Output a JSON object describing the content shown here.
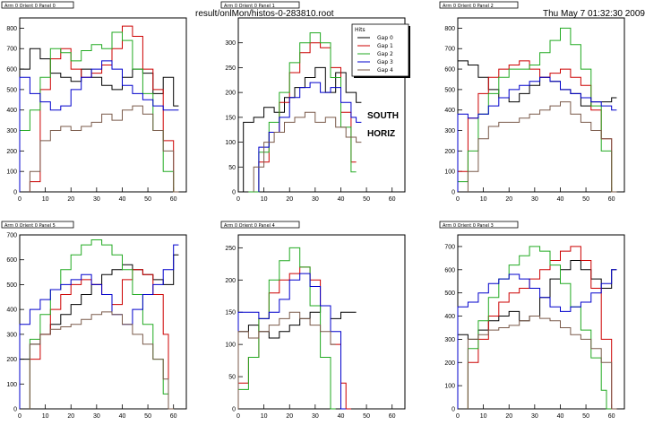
{
  "header": {
    "file_label": "result/onlMon/histos-0-283810.root",
    "datetime": "Thu May  7 01:32:30 2009"
  },
  "annotation": {
    "line1": "SOUTH",
    "line2": "HORIZ"
  },
  "legend": {
    "title": "Hits",
    "entries": [
      "Gap 0",
      "Gap 1",
      "Gap 2",
      "Gap 3",
      "Gap 4"
    ],
    "colors": [
      "#000000",
      "#cc0000",
      "#22aa22",
      "#0000cc",
      "#7a5a4a"
    ]
  },
  "chart_data": [
    {
      "type": "line",
      "title": "Arm 0 Orient 0 Panel 0",
      "xlim": [
        0,
        65
      ],
      "ylim": [
        0,
        850
      ],
      "xticks": [
        0,
        10,
        20,
        30,
        40,
        50,
        60
      ],
      "yticks": [
        0,
        100,
        200,
        300,
        400,
        500,
        600,
        700,
        800
      ],
      "series": [
        {
          "name": "Gap 0",
          "x": [
            0,
            4,
            8,
            12,
            16,
            20,
            24,
            28,
            32,
            36,
            40,
            44,
            48,
            52,
            56,
            60
          ],
          "y": [
            600,
            700,
            650,
            580,
            560,
            540,
            600,
            560,
            520,
            500,
            560,
            600,
            580,
            480,
            560,
            420
          ]
        },
        {
          "name": "Gap 1",
          "x": [
            4,
            8,
            12,
            16,
            20,
            24,
            28,
            32,
            36,
            40,
            44,
            48,
            52,
            56,
            60
          ],
          "y": [
            50,
            500,
            650,
            700,
            600,
            560,
            580,
            620,
            700,
            810,
            760,
            600,
            500,
            250,
            0
          ]
        },
        {
          "name": "Gap 2",
          "x": [
            0,
            4,
            8,
            12,
            16,
            20,
            24,
            28,
            32,
            36,
            40,
            44,
            48,
            52,
            56,
            60
          ],
          "y": [
            300,
            400,
            560,
            700,
            680,
            640,
            690,
            720,
            700,
            780,
            740,
            600,
            480,
            300,
            100,
            0
          ]
        },
        {
          "name": "Gap 3",
          "x": [
            0,
            4,
            8,
            12,
            16,
            20,
            24,
            28,
            32,
            36,
            40,
            44,
            48,
            52,
            56,
            60
          ],
          "y": [
            560,
            480,
            440,
            400,
            420,
            500,
            560,
            600,
            640,
            600,
            520,
            480,
            450,
            420,
            400,
            400
          ]
        },
        {
          "name": "Gap 4",
          "x": [
            4,
            8,
            12,
            16,
            20,
            24,
            28,
            32,
            36,
            40,
            44,
            48,
            52,
            56,
            60
          ],
          "y": [
            100,
            250,
            300,
            320,
            300,
            320,
            340,
            380,
            350,
            400,
            420,
            380,
            300,
            200,
            0
          ]
        }
      ]
    },
    {
      "type": "line",
      "title": "Arm 0 Orient 0 Panel 1",
      "xlim": [
        0,
        65
      ],
      "ylim": [
        0,
        350
      ],
      "xticks": [
        0,
        10,
        20,
        30,
        40,
        50,
        60
      ],
      "yticks": [
        0,
        50,
        100,
        150,
        200,
        250,
        300
      ],
      "series": [
        {
          "name": "Gap 0",
          "x": [
            2,
            6,
            10,
            14,
            18,
            22,
            26,
            30,
            34,
            38,
            42,
            46
          ],
          "y": [
            140,
            150,
            170,
            160,
            190,
            210,
            230,
            250,
            200,
            240,
            200,
            180
          ]
        },
        {
          "name": "Gap 1",
          "x": [
            4,
            8,
            12,
            16,
            20,
            24,
            28,
            32,
            36,
            40,
            44
          ],
          "y": [
            0,
            60,
            120,
            180,
            240,
            280,
            300,
            290,
            250,
            160,
            60
          ]
        },
        {
          "name": "Gap 2",
          "x": [
            4,
            8,
            12,
            16,
            20,
            24,
            28,
            32,
            36,
            40,
            44
          ],
          "y": [
            0,
            80,
            140,
            200,
            260,
            300,
            320,
            300,
            230,
            130,
            40
          ]
        },
        {
          "name": "Gap 3",
          "x": [
            8,
            12,
            16,
            20,
            24,
            28,
            32,
            36,
            40,
            44,
            46
          ],
          "y": [
            90,
            120,
            150,
            190,
            210,
            220,
            200,
            210,
            180,
            150,
            140
          ]
        },
        {
          "name": "Gap 4",
          "x": [
            6,
            10,
            14,
            18,
            22,
            26,
            30,
            34,
            38,
            42,
            46
          ],
          "y": [
            50,
            100,
            120,
            140,
            150,
            160,
            140,
            150,
            130,
            110,
            100
          ]
        }
      ]
    },
    {
      "type": "line",
      "title": "Arm 0 Orient 0 Panel 2",
      "xlim": [
        0,
        65
      ],
      "ylim": [
        0,
        850
      ],
      "xticks": [
        0,
        10,
        20,
        30,
        40,
        50,
        60
      ],
      "yticks": [
        0,
        100,
        200,
        300,
        400,
        500,
        600,
        700,
        800
      ],
      "series": [
        {
          "name": "Gap 0",
          "x": [
            0,
            4,
            8,
            12,
            16,
            20,
            24,
            28,
            32,
            36,
            40,
            44,
            48,
            52,
            56,
            60
          ],
          "y": [
            640,
            620,
            560,
            500,
            460,
            440,
            480,
            520,
            560,
            540,
            500,
            480,
            420,
            440,
            440,
            460
          ]
        },
        {
          "name": "Gap 1",
          "x": [
            0,
            4,
            8,
            12,
            16,
            20,
            24,
            28,
            32,
            36,
            40,
            44,
            48,
            52,
            56,
            60
          ],
          "y": [
            100,
            360,
            480,
            560,
            600,
            620,
            640,
            600,
            560,
            580,
            600,
            560,
            520,
            400,
            260,
            0
          ]
        },
        {
          "name": "Gap 2",
          "x": [
            0,
            4,
            8,
            12,
            16,
            20,
            24,
            28,
            32,
            36,
            40,
            44,
            48,
            52,
            56,
            60
          ],
          "y": [
            50,
            200,
            380,
            480,
            560,
            600,
            600,
            620,
            680,
            740,
            800,
            720,
            600,
            420,
            200,
            0
          ]
        },
        {
          "name": "Gap 3",
          "x": [
            0,
            4,
            8,
            12,
            16,
            20,
            24,
            28,
            32,
            36,
            40,
            44,
            48,
            52,
            56,
            60
          ],
          "y": [
            380,
            360,
            380,
            420,
            460,
            500,
            520,
            540,
            560,
            540,
            500,
            480,
            460,
            440,
            420,
            400
          ]
        },
        {
          "name": "Gap 4",
          "x": [
            4,
            8,
            12,
            16,
            20,
            24,
            28,
            32,
            36,
            40,
            44,
            48,
            52,
            56,
            60
          ],
          "y": [
            100,
            260,
            320,
            340,
            340,
            360,
            380,
            400,
            420,
            440,
            380,
            340,
            300,
            260,
            0
          ]
        }
      ]
    },
    {
      "type": "line",
      "title": "Arm 0 Orient 0 Panel 5",
      "xlim": [
        0,
        65
      ],
      "ylim": [
        0,
        700
      ],
      "xticks": [
        0,
        10,
        20,
        30,
        40,
        50,
        60
      ],
      "yticks": [
        0,
        100,
        200,
        300,
        400,
        500,
        600,
        700
      ],
      "series": [
        {
          "name": "Gap 0",
          "x": [
            0,
            4,
            8,
            12,
            16,
            20,
            24,
            28,
            32,
            36,
            40,
            44,
            48,
            52,
            56,
            60
          ],
          "y": [
            200,
            260,
            300,
            340,
            380,
            420,
            460,
            500,
            540,
            560,
            580,
            560,
            540,
            520,
            500,
            620
          ]
        },
        {
          "name": "Gap 1",
          "x": [
            4,
            8,
            12,
            16,
            20,
            24,
            28,
            32,
            36,
            40,
            44,
            48,
            52,
            56,
            58
          ],
          "y": [
            200,
            300,
            400,
            460,
            500,
            520,
            500,
            460,
            420,
            520,
            560,
            540,
            460,
            300,
            0
          ]
        },
        {
          "name": "Gap 2",
          "x": [
            4,
            8,
            12,
            16,
            20,
            24,
            28,
            32,
            36,
            40,
            44,
            48,
            52,
            56,
            58
          ],
          "y": [
            280,
            380,
            480,
            560,
            620,
            660,
            680,
            660,
            620,
            560,
            460,
            340,
            200,
            60,
            0
          ]
        },
        {
          "name": "Gap 3",
          "x": [
            0,
            4,
            8,
            12,
            16,
            20,
            24,
            28,
            32,
            36,
            40,
            44,
            48,
            52,
            56,
            60
          ],
          "y": [
            340,
            400,
            440,
            480,
            500,
            520,
            540,
            500,
            460,
            380,
            340,
            400,
            460,
            500,
            560,
            660
          ]
        },
        {
          "name": "Gap 4",
          "x": [
            4,
            8,
            12,
            16,
            20,
            24,
            28,
            32,
            36,
            40,
            44,
            48,
            52,
            56,
            58
          ],
          "y": [
            260,
            300,
            320,
            330,
            340,
            360,
            380,
            390,
            380,
            340,
            300,
            260,
            200,
            120,
            0
          ]
        }
      ]
    },
    {
      "type": "line",
      "title": "Arm 0 Orient 0 Panel 4",
      "xlim": [
        0,
        65
      ],
      "ylim": [
        0,
        270
      ],
      "xticks": [
        0,
        10,
        20,
        30,
        40,
        50,
        60
      ],
      "yticks": [
        0,
        50,
        100,
        150,
        200,
        250
      ],
      "series": [
        {
          "name": "Gap 0",
          "x": [
            0,
            4,
            8,
            12,
            16,
            20,
            24,
            28,
            32,
            36,
            40,
            44
          ],
          "y": [
            120,
            130,
            120,
            110,
            120,
            130,
            140,
            150,
            160,
            140,
            150,
            150
          ]
        },
        {
          "name": "Gap 1",
          "x": [
            0,
            4,
            8,
            12,
            16,
            20,
            24,
            28,
            32,
            36,
            40,
            42
          ],
          "y": [
            40,
            80,
            140,
            180,
            200,
            210,
            220,
            200,
            160,
            100,
            40,
            0
          ]
        },
        {
          "name": "Gap 2",
          "x": [
            0,
            4,
            8,
            12,
            16,
            20,
            24,
            28,
            32,
            36
          ],
          "y": [
            30,
            80,
            140,
            200,
            230,
            250,
            220,
            160,
            80,
            0
          ]
        },
        {
          "name": "Gap 3",
          "x": [
            0,
            4,
            8,
            12,
            16,
            20,
            24,
            28,
            32,
            36,
            40
          ],
          "y": [
            150,
            150,
            140,
            150,
            170,
            200,
            210,
            190,
            160,
            120,
            0
          ]
        },
        {
          "name": "Gap 4",
          "x": [
            0,
            4,
            8,
            12,
            16,
            20,
            24,
            28,
            32,
            36
          ],
          "y": [
            120,
            110,
            120,
            130,
            140,
            150,
            140,
            130,
            120,
            100
          ]
        }
      ]
    },
    {
      "type": "line",
      "title": "Arm 0 Orient 0 Panel 3",
      "xlim": [
        0,
        65
      ],
      "ylim": [
        0,
        750
      ],
      "xticks": [
        0,
        10,
        20,
        30,
        40,
        50,
        60
      ],
      "yticks": [
        0,
        100,
        200,
        300,
        400,
        500,
        600,
        700
      ],
      "series": [
        {
          "name": "Gap 0",
          "x": [
            0,
            4,
            8,
            12,
            16,
            20,
            24,
            28,
            32,
            36,
            40,
            44,
            48,
            52,
            56,
            60
          ],
          "y": [
            320,
            300,
            340,
            380,
            400,
            420,
            380,
            400,
            480,
            560,
            600,
            640,
            600,
            560,
            520,
            600
          ]
        },
        {
          "name": "Gap 1",
          "x": [
            4,
            8,
            12,
            16,
            20,
            24,
            28,
            32,
            36,
            40,
            44,
            48,
            52,
            56,
            60
          ],
          "y": [
            200,
            300,
            400,
            460,
            500,
            520,
            560,
            600,
            640,
            680,
            700,
            640,
            520,
            300,
            0
          ]
        },
        {
          "name": "Gap 2",
          "x": [
            4,
            8,
            12,
            16,
            20,
            24,
            28,
            32,
            36,
            40,
            44,
            48,
            52,
            56,
            58
          ],
          "y": [
            260,
            380,
            480,
            560,
            620,
            660,
            700,
            680,
            620,
            540,
            440,
            340,
            220,
            80,
            0
          ]
        },
        {
          "name": "Gap 3",
          "x": [
            0,
            4,
            8,
            12,
            16,
            20,
            24,
            28,
            32,
            36,
            40,
            44,
            48,
            52,
            56,
            60
          ],
          "y": [
            440,
            460,
            500,
            540,
            560,
            580,
            560,
            520,
            480,
            440,
            420,
            440,
            460,
            500,
            540,
            600
          ]
        },
        {
          "name": "Gap 4",
          "x": [
            4,
            8,
            12,
            16,
            20,
            24,
            28,
            32,
            36,
            40,
            44,
            48,
            52,
            56,
            60
          ],
          "y": [
            300,
            320,
            340,
            350,
            360,
            380,
            400,
            390,
            380,
            350,
            320,
            300,
            260,
            200,
            0
          ]
        }
      ]
    }
  ]
}
